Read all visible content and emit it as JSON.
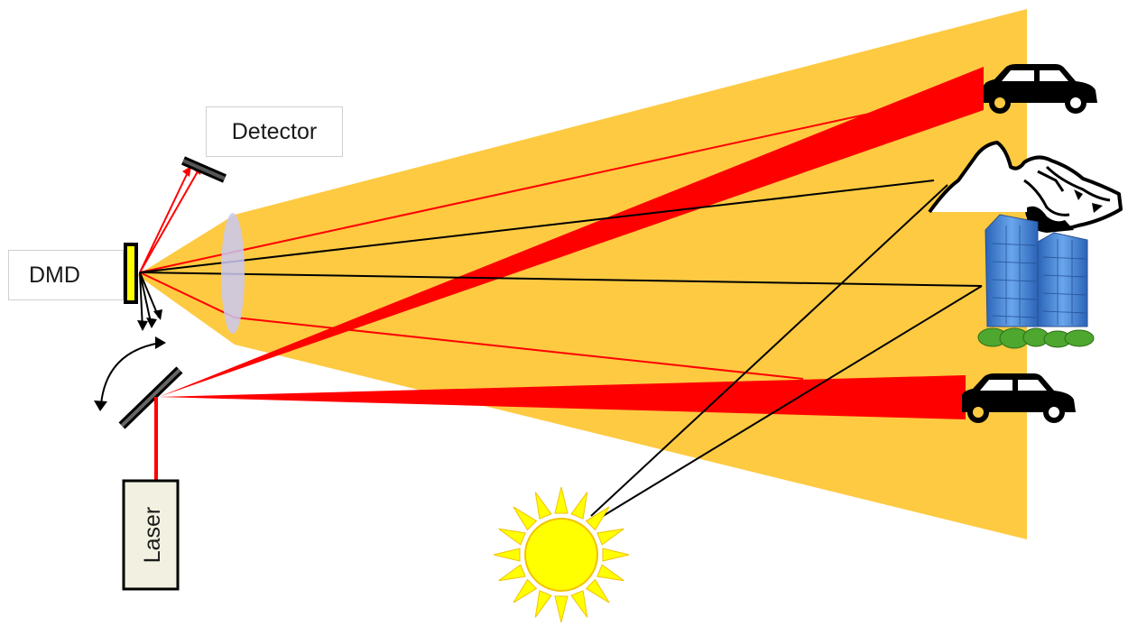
{
  "labels": {
    "detector": "Detector",
    "dmd": "DMD",
    "laser": "Laser"
  },
  "colors": {
    "field_of_view": "#FDCA42",
    "laser_beam": "#FF0000",
    "lens": "#C9C8F2",
    "dmd": "#FFFF00",
    "sun": "#FFFF00",
    "building": "#3E7FD6",
    "bush": "#4EA72E",
    "ray": "#000000"
  },
  "icons": [
    "car-icon",
    "mountain-icon",
    "buildings-icon",
    "sun-icon",
    "rotation-arrow-icon"
  ]
}
